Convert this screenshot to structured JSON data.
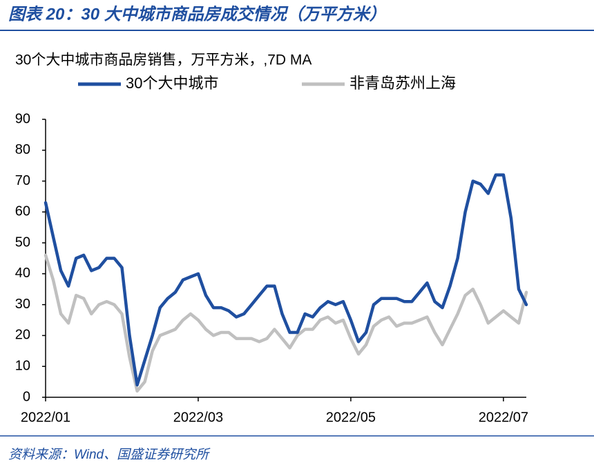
{
  "chart_data": {
    "type": "line",
    "title": "图表 20：30 大中城市商品房成交情况（万平方米）",
    "subtitle": "30个大中城市商品房销售，万平方米，,7D MA",
    "source": "资料来源：Wind、国盛证券研究所",
    "categories": [
      "2022/01",
      null,
      null,
      null,
      null,
      null,
      null,
      null,
      null,
      null,
      null,
      null,
      null,
      null,
      null,
      null,
      null,
      null,
      null,
      null,
      "2022/03",
      null,
      null,
      null,
      null,
      null,
      null,
      null,
      null,
      null,
      null,
      null,
      null,
      null,
      null,
      null,
      null,
      null,
      null,
      null,
      "2022/05",
      null,
      null,
      null,
      null,
      null,
      null,
      null,
      null,
      null,
      null,
      null,
      null,
      null,
      null,
      null,
      null,
      null,
      null,
      null,
      "2022/07",
      null,
      null,
      null
    ],
    "series": [
      {
        "name": "30个大中城市",
        "color": "#1f4fa0",
        "values": [
          63,
          52,
          41,
          36,
          45,
          46,
          41,
          42,
          45,
          45,
          42,
          20,
          4,
          12,
          20,
          29,
          32,
          34,
          38,
          39,
          40,
          33,
          29,
          29,
          28,
          26,
          27,
          30,
          33,
          36,
          36,
          27,
          21,
          21,
          27,
          26,
          29,
          31,
          30,
          31,
          25,
          18,
          21,
          30,
          32,
          32,
          32,
          31,
          31,
          34,
          37,
          31,
          29,
          36,
          45,
          60,
          70,
          69,
          66,
          72,
          72,
          58,
          35,
          30
        ]
      },
      {
        "name": "非青岛苏州上海",
        "color": "#c0c0c0",
        "values": [
          46,
          38,
          27,
          24,
          33,
          32,
          27,
          30,
          31,
          30,
          27,
          13,
          2,
          5,
          15,
          20,
          21,
          22,
          25,
          27,
          25,
          22,
          20,
          21,
          21,
          19,
          19,
          19,
          18,
          19,
          22,
          19,
          16,
          20,
          22,
          22,
          25,
          26,
          24,
          25,
          19,
          14,
          17,
          23,
          25,
          26,
          23,
          24,
          24,
          25,
          26,
          21,
          17,
          22,
          27,
          33,
          35,
          30,
          24,
          26,
          28,
          26,
          24,
          34
        ]
      }
    ],
    "ylim": [
      0,
      90
    ],
    "yticks": [
      0,
      10,
      20,
      30,
      40,
      50,
      60,
      70,
      80,
      90
    ],
    "grid": false
  }
}
